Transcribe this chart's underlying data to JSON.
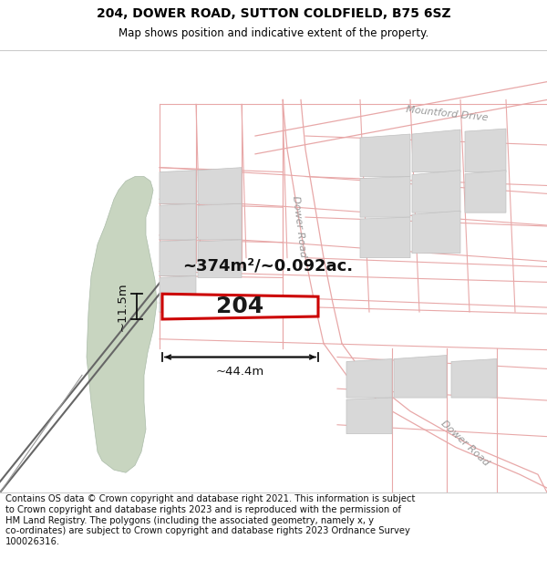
{
  "title": "204, DOWER ROAD, SUTTON COLDFIELD, B75 6SZ",
  "subtitle": "Map shows position and indicative extent of the property.",
  "footer": "Contains OS data © Crown copyright and database right 2021. This information is subject\nto Crown copyright and database rights 2023 and is reproduced with the permission of\nHM Land Registry. The polygons (including the associated geometry, namely x, y\nco-ordinates) are subject to Crown copyright and database rights 2023 Ordnance Survey\n100026316.",
  "title_fontsize": 10,
  "subtitle_fontsize": 8.5,
  "footer_fontsize": 7.2,
  "property_label": "204",
  "area_label": "~374m²/~0.092ac.",
  "width_label": "~44.4m",
  "height_label": "~11.5m",
  "property_color": "#cc0000",
  "property_fill": "#ffffff",
  "green_color": "#c8d5c0",
  "road_color": "#e8a8a8",
  "building_color": "#d8d8d8",
  "building_edge": "#c0c0c0",
  "road_label_color": "#999999",
  "railway_color": "#666666",
  "map_bg": "#ffffff",
  "dim_color": "#111111"
}
